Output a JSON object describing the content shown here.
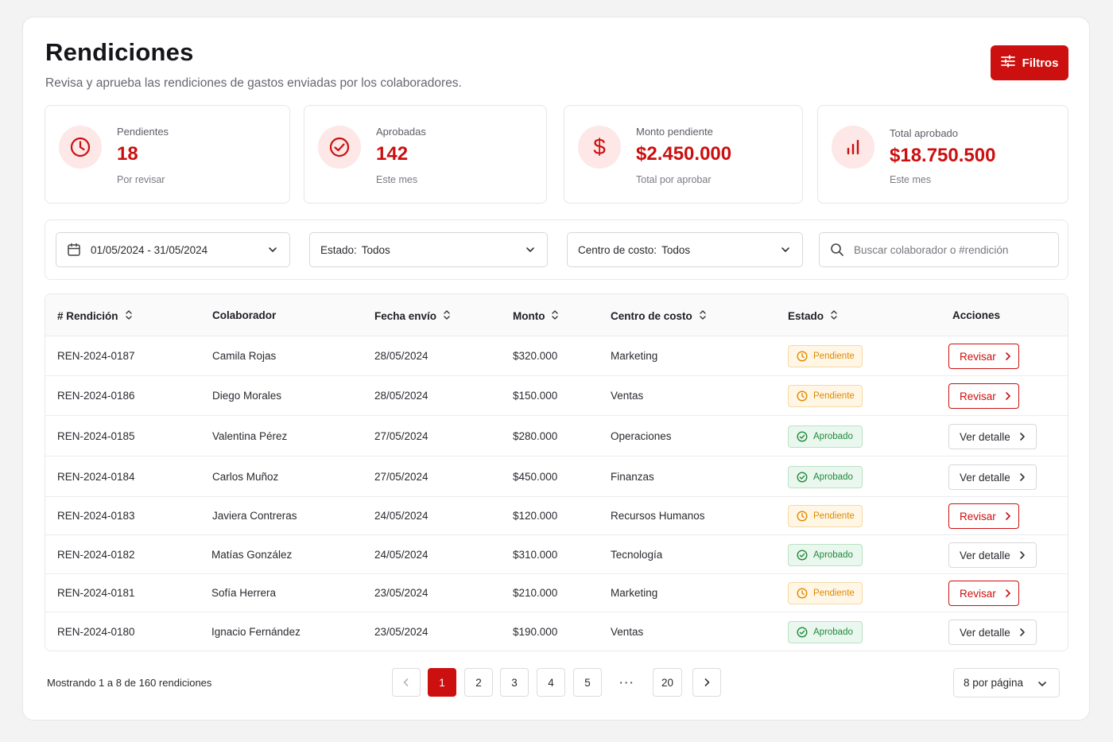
{
  "page": {
    "title": "Rendiciones",
    "subtitle": "Revisa y aprueba las rendiciones de gastos enviadas por los colaboradores.",
    "filters_button": "Filtros"
  },
  "colors": {
    "brand": "#cc0f0f",
    "pending": "#e08a00",
    "approved": "#1f8a3c"
  },
  "stats": [
    {
      "icon": "clock-icon",
      "label": "Pendientes",
      "value": "18",
      "note": "Por revisar"
    },
    {
      "icon": "check-circle-icon",
      "label": "Aprobadas",
      "value": "142",
      "note": "Este mes"
    },
    {
      "icon": "dollar-icon",
      "label": "Monto pendiente",
      "value": "$2.450.000",
      "note": "Total por aprobar"
    },
    {
      "icon": "bar-chart-icon",
      "label": "Total aprobado",
      "value": "$18.750.500",
      "note": "Este mes"
    }
  ],
  "filters": {
    "date_range": "01/05/2024 - 31/05/2024",
    "estado_label": "Estado:",
    "estado_value": "Todos",
    "centro_label": "Centro de costo:",
    "centro_value": "Todos",
    "search_placeholder": "Buscar colaborador o #rendición"
  },
  "table": {
    "headers": [
      "# Rendición",
      "Colaborador",
      "Fecha envío",
      "Monto",
      "Centro de costo",
      "Estado",
      "Acciones"
    ],
    "rows": [
      {
        "id": "REN-2024-0187",
        "colaborador": "Camila Rojas",
        "fecha": "28/05/2024",
        "monto": "$320.000",
        "centro": "Marketing",
        "estado": "Pendiente",
        "accion": "Revisar"
      },
      {
        "id": "REN-2024-0186",
        "colaborador": "Diego Morales",
        "fecha": "28/05/2024",
        "monto": "$150.000",
        "centro": "Ventas",
        "estado": "Pendiente",
        "accion": "Revisar"
      },
      {
        "id": "REN-2024-0185",
        "colaborador": "Valentina Pérez",
        "fecha": "27/05/2024",
        "monto": "$280.000",
        "centro": "Operaciones",
        "estado": "Aprobado",
        "accion": "Ver detalle"
      },
      {
        "id": "REN-2024-0184",
        "colaborador": "Carlos Muñoz",
        "fecha": "27/05/2024",
        "monto": "$450.000",
        "centro": "Finanzas",
        "estado": "Aprobado",
        "accion": "Ver detalle"
      },
      {
        "id": "REN-2024-0183",
        "colaborador": "Javiera Contreras",
        "fecha": "24/05/2024",
        "monto": "$120.000",
        "centro": "Recursos Humanos",
        "estado": "Pendiente",
        "accion": "Revisar"
      },
      {
        "id": "REN-2024-0182",
        "colaborador": "Matías González",
        "fecha": "24/05/2024",
        "monto": "$310.000",
        "centro": "Tecnología",
        "estado": "Aprobado",
        "accion": "Ver detalle"
      },
      {
        "id": "REN-2024-0181",
        "colaborador": "Sofía Herrera",
        "fecha": "23/05/2024",
        "monto": "$210.000",
        "centro": "Marketing",
        "estado": "Pendiente",
        "accion": "Revisar"
      },
      {
        "id": "REN-2024-0180",
        "colaborador": "Ignacio Fernández",
        "fecha": "23/05/2024",
        "monto": "$190.000",
        "centro": "Ventas",
        "estado": "Aprobado",
        "accion": "Ver detalle"
      }
    ]
  },
  "pagination": {
    "info": "Mostrando 1 a 8 de 160 rendiciones",
    "pages": [
      "1",
      "2",
      "3",
      "4",
      "5",
      "···",
      "20"
    ],
    "current": "1",
    "per_page": "8 por página"
  }
}
